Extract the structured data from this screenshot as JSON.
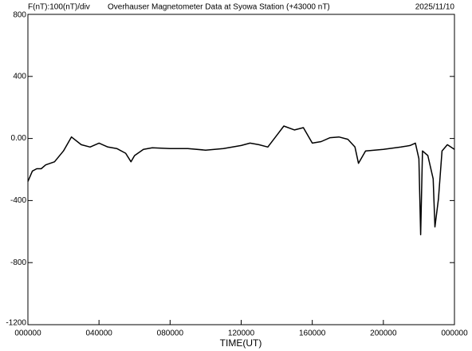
{
  "chart_data": {
    "type": "line",
    "title": "Overhauser Magnetometer Data at Syowa Station (+43000 nT)",
    "scale_label": "F(nT):100(nT)/div",
    "date": "2025/11/10",
    "x_label": "TIME(UT)",
    "xlim": [
      0,
      24
    ],
    "xticks": [
      {
        "value": 0,
        "label": "000000"
      },
      {
        "value": 4,
        "label": "040000"
      },
      {
        "value": 8,
        "label": "080000"
      },
      {
        "value": 12,
        "label": "120000"
      },
      {
        "value": 16,
        "label": "160000"
      },
      {
        "value": 20,
        "label": "200000"
      },
      {
        "value": 24,
        "label": "000000"
      }
    ],
    "ylim": [
      -1200,
      800
    ],
    "yticks": [
      -1200,
      -800,
      -400,
      {
        "value": 0,
        "label": "0.00"
      },
      400,
      800
    ],
    "x": [
      0,
      0.25,
      0.5,
      0.75,
      1,
      1.5,
      2,
      2.45,
      3,
      3.5,
      4,
      4.5,
      5,
      5.5,
      5.8,
      6,
      6.5,
      7,
      8,
      9,
      10,
      11,
      12,
      12.5,
      13,
      13.5,
      14,
      14.4,
      15,
      15.5,
      16,
      16.5,
      17,
      17.5,
      18,
      18.4,
      18.6,
      19,
      20,
      21,
      21.5,
      21.8,
      22,
      22.1,
      22.2,
      22.5,
      22.8,
      22.9,
      23.1,
      23.3,
      23.6,
      24
    ],
    "series": [
      {
        "color": "#000000",
        "values": [
          -277,
          -210,
          -195,
          -195,
          -170,
          -150,
          -80,
          10,
          -40,
          -55,
          -30,
          -55,
          -65,
          -95,
          -150,
          -110,
          -70,
          -60,
          -65,
          -65,
          -75,
          -65,
          -45,
          -30,
          -40,
          -55,
          20,
          80,
          55,
          70,
          -30,
          -20,
          5,
          10,
          -5,
          -55,
          -160,
          -80,
          -70,
          -55,
          -45,
          -30,
          -130,
          -620,
          -80,
          -110,
          -260,
          -570,
          -390,
          -80,
          -40,
          -70
        ]
      }
    ]
  }
}
